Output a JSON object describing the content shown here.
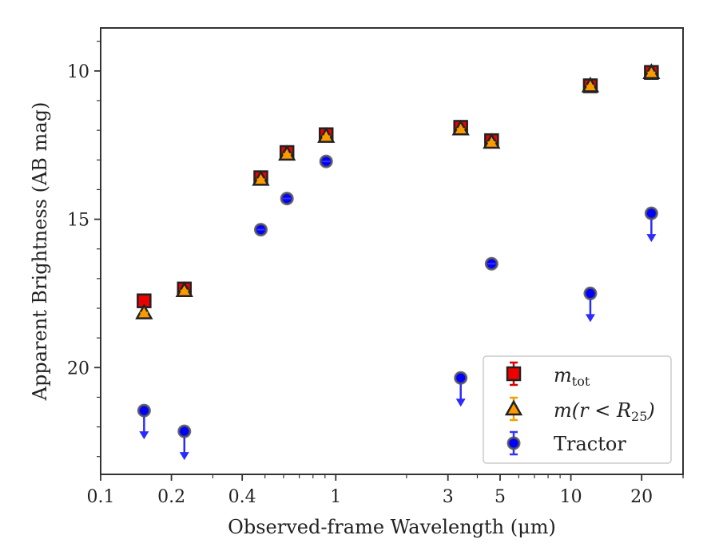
{
  "chart_data": {
    "type": "scatter",
    "xscale": "log",
    "yscale": "linear",
    "y_inverted": true,
    "xlim": [
      0.1,
      30
    ],
    "ylim": [
      23.6,
      8.55
    ],
    "xlabel": "Observed-frame Wavelength (μm)",
    "ylabel": "Apparent Brightness (AB mag)",
    "xticks": [
      {
        "value": 0.1,
        "label": "0.1"
      },
      {
        "value": 0.2,
        "label": "0.2"
      },
      {
        "value": 0.4,
        "label": "0.4"
      },
      {
        "value": 1,
        "label": "1"
      },
      {
        "value": 3,
        "label": "3"
      },
      {
        "value": 5,
        "label": "5"
      },
      {
        "value": 10,
        "label": "10"
      },
      {
        "value": 20,
        "label": "20"
      }
    ],
    "yticks": [
      {
        "value": 10,
        "label": "10"
      },
      {
        "value": 15,
        "label": "15"
      },
      {
        "value": 20,
        "label": "20"
      }
    ],
    "grid": false,
    "legend_position": "lower-right",
    "series": [
      {
        "name": "m_tot",
        "marker": "square",
        "color": "#ee0000",
        "edge": "#222222",
        "errcolor": "#dd0000",
        "points": [
          {
            "x": 0.153,
            "y": 17.75
          },
          {
            "x": 0.227,
            "y": 17.35
          },
          {
            "x": 0.48,
            "y": 13.6
          },
          {
            "x": 0.62,
            "y": 12.75
          },
          {
            "x": 0.91,
            "y": 12.15
          },
          {
            "x": 3.4,
            "y": 11.9
          },
          {
            "x": 4.6,
            "y": 12.35
          },
          {
            "x": 12.1,
            "y": 10.5
          },
          {
            "x": 22.0,
            "y": 10.05
          }
        ]
      },
      {
        "name": "m(r < R25)",
        "marker": "triangle",
        "color": "#ff9900",
        "edge": "#222222",
        "errcolor": "#f0a000",
        "points": [
          {
            "x": 0.153,
            "y": 18.15
          },
          {
            "x": 0.227,
            "y": 17.4
          },
          {
            "x": 0.48,
            "y": 13.65
          },
          {
            "x": 0.62,
            "y": 12.8
          },
          {
            "x": 0.91,
            "y": 12.2
          },
          {
            "x": 3.4,
            "y": 11.95
          },
          {
            "x": 4.6,
            "y": 12.4
          },
          {
            "x": 12.1,
            "y": 10.5
          },
          {
            "x": 22.0,
            "y": 10.05
          }
        ]
      },
      {
        "name": "Tractor",
        "marker": "circle",
        "color": "#0000ff",
        "edge": "#555555",
        "errcolor": "#3333ff",
        "points": [
          {
            "x": 0.153,
            "y": 21.45,
            "upper_limit": true
          },
          {
            "x": 0.227,
            "y": 22.15,
            "upper_limit": true
          },
          {
            "x": 0.48,
            "y": 15.35
          },
          {
            "x": 0.62,
            "y": 14.3
          },
          {
            "x": 0.91,
            "y": 13.05
          },
          {
            "x": 3.4,
            "y": 20.35,
            "upper_limit": true
          },
          {
            "x": 4.6,
            "y": 16.5
          },
          {
            "x": 12.1,
            "y": 17.5,
            "upper_limit": true
          },
          {
            "x": 22.0,
            "y": 14.8,
            "upper_limit": true
          }
        ]
      }
    ]
  }
}
